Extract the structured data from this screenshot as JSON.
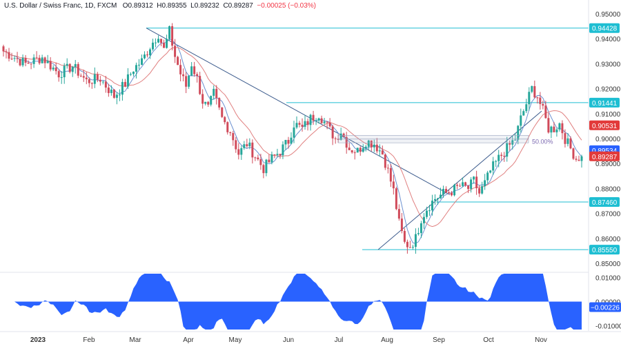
{
  "header": {
    "symbol": "U.S. Dollar / Swiss Franc, 1D, FXCM",
    "o_label": "O",
    "o": "0.89312",
    "h_label": "H",
    "h": "0.89355",
    "l_label": "L",
    "l": "0.89232",
    "c_label": "C",
    "c": "0.89287",
    "change": "−0.00025 (−0.03%)"
  },
  "chart_data": {
    "type": "candlestick",
    "title": "U.S. Dollar / Swiss Franc, 1D, FXCM",
    "ylim": [
      0.847,
      0.9525
    ],
    "y_ticks": [
      0.95,
      0.94,
      0.93,
      0.92,
      0.91,
      0.9,
      0.89,
      0.88,
      0.87,
      0.86,
      0.85
    ],
    "y_tick_labels": [
      "0.95000",
      "0.94000",
      "0.93000",
      "0.92000",
      "0.91000",
      "0.90000",
      "0.89000",
      "0.88000",
      "0.87000",
      "0.86000",
      "0.85000"
    ],
    "x_tick_labels": [
      "2023",
      "Feb",
      "Mar",
      "Apr",
      "May",
      "Jun",
      "Jul",
      "Aug",
      "Sep",
      "Oct",
      "Nov"
    ],
    "price_path": [
      [
        0,
        0.935
      ],
      [
        8,
        0.93
      ],
      [
        14,
        0.9325
      ],
      [
        20,
        0.926
      ],
      [
        25,
        0.929
      ],
      [
        30,
        0.923
      ],
      [
        35,
        0.924
      ],
      [
        40,
        0.917
      ],
      [
        44,
        0.922
      ],
      [
        47,
        0.928
      ],
      [
        50,
        0.931
      ],
      [
        53,
        0.937
      ],
      [
        56,
        0.942
      ],
      [
        58,
        0.9355
      ],
      [
        60,
        0.943
      ],
      [
        62,
        0.933
      ],
      [
        64,
        0.926
      ],
      [
        66,
        0.921
      ],
      [
        68,
        0.93
      ],
      [
        70,
        0.924
      ],
      [
        72,
        0.915
      ],
      [
        74,
        0.912
      ],
      [
        76,
        0.918
      ],
      [
        79,
        0.908
      ],
      [
        82,
        0.903
      ],
      [
        85,
        0.894
      ],
      [
        88,
        0.898
      ],
      [
        91,
        0.893
      ],
      [
        94,
        0.888
      ],
      [
        97,
        0.892
      ],
      [
        100,
        0.895
      ],
      [
        103,
        0.899
      ],
      [
        105,
        0.906
      ],
      [
        108,
        0.904
      ],
      [
        111,
        0.908
      ],
      [
        114,
        0.91
      ],
      [
        117,
        0.905
      ],
      [
        120,
        0.9
      ],
      [
        122,
        0.903
      ],
      [
        125,
        0.896
      ],
      [
        128,
        0.895
      ],
      [
        131,
        0.899
      ],
      [
        134,
        0.898
      ],
      [
        137,
        0.894
      ],
      [
        139,
        0.887
      ],
      [
        141,
        0.879
      ],
      [
        143,
        0.866
      ],
      [
        145,
        0.858
      ],
      [
        147,
        0.857
      ],
      [
        149,
        0.86
      ],
      [
        151,
        0.868
      ],
      [
        153,
        0.872
      ],
      [
        156,
        0.876
      ],
      [
        159,
        0.878
      ],
      [
        162,
        0.879
      ],
      [
        165,
        0.881
      ],
      [
        168,
        0.88
      ],
      [
        170,
        0.883
      ],
      [
        172,
        0.878
      ],
      [
        174,
        0.882
      ],
      [
        176,
        0.887
      ],
      [
        179,
        0.892
      ],
      [
        182,
        0.896
      ],
      [
        185,
        0.9
      ],
      [
        187,
        0.908
      ],
      [
        189,
        0.914
      ],
      [
        191,
        0.92
      ],
      [
        193,
        0.917
      ],
      [
        195,
        0.911
      ],
      [
        197,
        0.904
      ],
      [
        199,
        0.904
      ],
      [
        201,
        0.906
      ],
      [
        203,
        0.9
      ],
      [
        205,
        0.896
      ],
      [
        207,
        0.892
      ],
      [
        209,
        0.8929
      ]
    ],
    "moving_averages": {
      "sma_fast_color": "#6a8fd0",
      "sma_slow_color": "#e07f7f"
    },
    "oscillator": {
      "ylim": [
        -0.0115,
        0.0115
      ],
      "y_tick_labels": [
        "0.01000",
        "0.00000",
        "-0.01000"
      ],
      "y_ticks": [
        0.01,
        0.0,
        -0.01
      ],
      "last": "−0.00226",
      "fill_color": "#2962ff"
    },
    "annotations": {
      "fib_label": "50.00%",
      "levels": [
        {
          "label": "0.94428",
          "value": 0.94428,
          "kind": "horizontal",
          "color": "#1ebed2"
        },
        {
          "label": "0.91441",
          "value": 0.91441,
          "kind": "horizontal",
          "color": "#1ebed2"
        },
        {
          "label": "0.87460",
          "value": 0.8746,
          "kind": "horizontal",
          "color": "#1ebed2"
        },
        {
          "label": "0.85550",
          "value": 0.8555,
          "kind": "horizontal",
          "color": "#1ebed2"
        }
      ],
      "price_badges": [
        {
          "label": "0.90531",
          "value": 0.90531,
          "color": "#e23a3a"
        },
        {
          "label": "0.89534",
          "value": 0.89534,
          "color": "#2962ff"
        },
        {
          "label": "0.89287",
          "value": 0.89287,
          "color": "#e23a3a"
        }
      ]
    },
    "colors": {
      "up": "#26a69a",
      "down": "#d04a5a",
      "grid": "#f0f3fa",
      "trendline": "#3b5a8c"
    },
    "grid": false
  }
}
